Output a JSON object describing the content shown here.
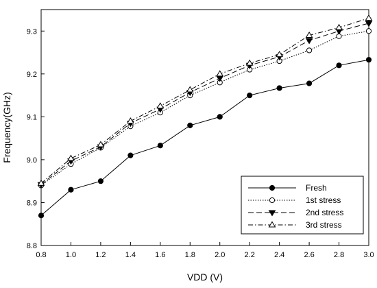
{
  "chart_data": {
    "type": "line",
    "xlabel": "VDD (V)",
    "ylabel": "Frequency(GHz)",
    "xlim": [
      0.8,
      3.0
    ],
    "ylim": [
      8.8,
      9.35
    ],
    "xticks": [
      "0.8",
      "1.0",
      "1.2",
      "1.4",
      "1.6",
      "1.8",
      "2.0",
      "2.2",
      "2.4",
      "2.6",
      "2.8",
      "3.0"
    ],
    "yticks": [
      "8.8",
      "8.9",
      "9.0",
      "9.1",
      "9.2",
      "9.3"
    ],
    "x": [
      0.8,
      1.0,
      1.2,
      1.4,
      1.6,
      1.8,
      2.0,
      2.2,
      2.4,
      2.6,
      2.8,
      3.0
    ],
    "grid": false,
    "legend_position": "bottom-right",
    "series": [
      {
        "name": "Fresh",
        "style": "solid",
        "marker": "filled-circle",
        "values": [
          8.87,
          8.93,
          8.95,
          9.01,
          9.033,
          9.08,
          9.1,
          9.15,
          9.167,
          9.178,
          9.22,
          9.233
        ]
      },
      {
        "name": "1st stress",
        "style": "dotted",
        "marker": "open-circle",
        "values": [
          8.94,
          8.99,
          9.028,
          9.078,
          9.11,
          9.15,
          9.18,
          9.21,
          9.23,
          9.255,
          9.288,
          9.3
        ]
      },
      {
        "name": "2nd stress",
        "style": "dashed",
        "marker": "filled-triangle-down",
        "values": [
          8.942,
          8.997,
          9.03,
          9.085,
          9.118,
          9.157,
          9.19,
          9.22,
          9.24,
          9.278,
          9.3,
          9.318
        ]
      },
      {
        "name": "3rd stress",
        "style": "dash-dot",
        "marker": "open-triangle-up",
        "values": [
          8.945,
          9.003,
          9.035,
          9.09,
          9.125,
          9.163,
          9.2,
          9.225,
          9.245,
          9.29,
          9.308,
          9.33
        ]
      }
    ]
  }
}
